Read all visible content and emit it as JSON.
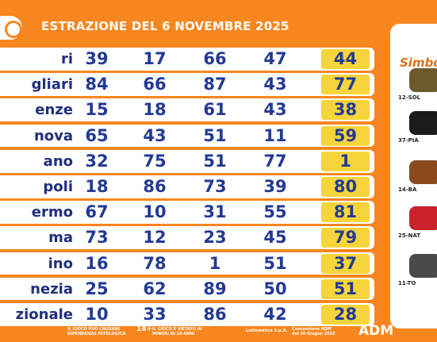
{
  "header": {
    "title": "ESTRAZIONE DEL 6 NOVEMBRE 2025"
  },
  "rows": [
    {
      "wheel": "ri",
      "n": [
        "39",
        "17",
        "66",
        "47"
      ],
      "extra": "44"
    },
    {
      "wheel": "gliari",
      "n": [
        "84",
        "66",
        "87",
        "43"
      ],
      "extra": "77"
    },
    {
      "wheel": "enze",
      "n": [
        "15",
        "18",
        "61",
        "43"
      ],
      "extra": "38"
    },
    {
      "wheel": "nova",
      "n": [
        "65",
        "43",
        "51",
        "11"
      ],
      "extra": "59"
    },
    {
      "wheel": "ano",
      "n": [
        "32",
        "75",
        "51",
        "77"
      ],
      "extra": "1"
    },
    {
      "wheel": "poli",
      "n": [
        "18",
        "86",
        "73",
        "39"
      ],
      "extra": "80"
    },
    {
      "wheel": "ermo",
      "n": [
        "67",
        "10",
        "31",
        "55"
      ],
      "extra": "81"
    },
    {
      "wheel": "ma",
      "n": [
        "73",
        "12",
        "23",
        "45"
      ],
      "extra": "79"
    },
    {
      "wheel": "ino",
      "n": [
        "16",
        "78",
        "1",
        "51"
      ],
      "extra": "37"
    },
    {
      "wheel": "nezia",
      "n": [
        "25",
        "62",
        "89",
        "50"
      ],
      "extra": "51"
    },
    {
      "wheel": "zionale",
      "n": [
        "10",
        "33",
        "86",
        "42"
      ],
      "extra": "28"
    }
  ],
  "simbolotto": {
    "title": "Simbolo",
    "symbols": [
      {
        "caption": "12-SOL",
        "color": "#6b5a2e",
        "icon": "soldier-helmet-icon"
      },
      {
        "caption": "37-PIA",
        "color": "#1b1b1b",
        "icon": "piano-icon"
      },
      {
        "caption": "14-BA",
        "color": "#8a4a1e",
        "icon": "chest-icon"
      },
      {
        "caption": "25-NAT",
        "color": "#c8232b",
        "icon": "christmas-ornament-icon"
      },
      {
        "caption": "11-TO",
        "color": "#4a4a4a",
        "icon": "mice-icon"
      }
    ]
  },
  "footer": {
    "warning1": "IL GIOCO PUÒ CAUSARE DIPENDENZA PATOLOGICA",
    "age": "18+",
    "warning2": "IL GIOCO È VIETATO AI MINORI DI 18 ANNI",
    "company": "Lottomatica S.p.A.",
    "concession": "Concessione ADM del 20 Giugno 2016",
    "adm": "ADM"
  }
}
